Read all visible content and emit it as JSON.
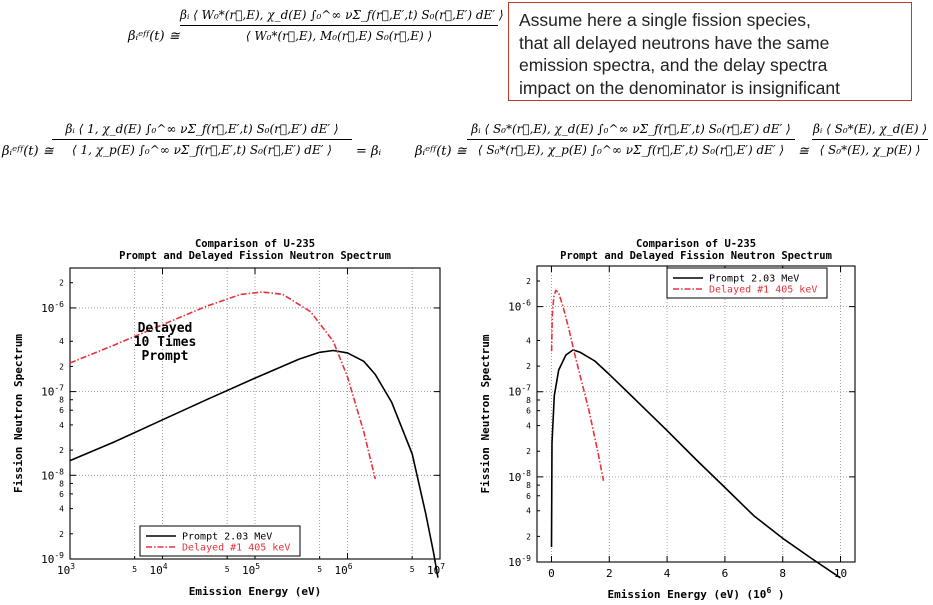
{
  "equations": {
    "eq1": {
      "lhs": "βᵢᵉᶠᶠ(t) ≅",
      "numerator": "βᵢ ⟨ W₀*(r⃗,E), χ_d(E) ∫₀^∞ νΣ_f(r⃗,E′,t) S₀(r⃗,E′) dE′ ⟩",
      "denominator": "⟨ W₀*(r⃗,E), M₀(r⃗,E) S₀(r⃗,E) ⟩"
    },
    "eq2": {
      "lhs": "βᵢᵉᶠᶠ(t) ≅",
      "numerator": "βᵢ ⟨ 1, χ_d(E) ∫₀^∞ νΣ_f(r⃗,E′,t) S₀(r⃗,E′) dE′ ⟩",
      "denominator": "⟨ 1, χ_p(E) ∫₀^∞ νΣ_f(r⃗,E′,t) S₀(r⃗,E′) dE′ ⟩",
      "result": "= βᵢ"
    },
    "eq3": {
      "lhs": "βᵢᵉᶠᶠ(t) ≅",
      "numerator": "βᵢ ⟨ S₀*(r⃗,E), χ_d(E) ∫₀^∞ νΣ_f(r⃗,E′,t) S₀(r⃗,E′) dE′ ⟩",
      "denominator": "⟨ S₀*(r⃗,E), χ_p(E) ∫₀^∞ νΣ_f(r⃗,E′,t) S₀(r⃗,E′) dE′ ⟩",
      "approx": "≅",
      "numerator2": "βᵢ ⟨ S₀*(E), χ_d(E) ⟩",
      "denominator2": "⟨ S₀*(E), χ_p(E) ⟩"
    }
  },
  "note": {
    "lines": [
      "Assume here a single fission species,",
      "that all delayed neutrons have the same",
      "emission spectra, and the delay spectra",
      "impact on the denominator is insignificant"
    ]
  },
  "colors": {
    "prompt": "#000000",
    "delayed": "#e8323c",
    "note_border": "#c0392b"
  },
  "chart_data": [
    {
      "type": "line",
      "title": "Comparison of U-235",
      "subtitle": "Prompt and Delayed Fission Neutron Spectrum",
      "xlabel": "Emission Energy (eV)",
      "ylabel": "Fission Neutron Spectrum",
      "xscale": "log",
      "yscale": "log",
      "xlim": [
        1000,
        10000000
      ],
      "ylim": [
        1e-09,
        3e-06
      ],
      "x_major_ticks": [
        {
          "v": 1000,
          "b": "10",
          "e": "3"
        },
        {
          "v": 10000,
          "b": "10",
          "e": "4"
        },
        {
          "v": 100000,
          "b": "10",
          "e": "5"
        },
        {
          "v": 1000000,
          "b": "10",
          "e": "6"
        },
        {
          "v": 10000000,
          "b": "10",
          "e": "7"
        }
      ],
      "x_minor_ticks": [
        {
          "v": 5000,
          "t": "5"
        },
        {
          "v": 50000,
          "t": "5"
        },
        {
          "v": 500000,
          "t": "5"
        },
        {
          "v": 5000000,
          "t": "5"
        }
      ],
      "y_major_ticks": [
        {
          "v": 1e-06,
          "b": "10",
          "e": "-6"
        },
        {
          "v": 1e-07,
          "b": "10",
          "e": "-7"
        },
        {
          "v": 1e-08,
          "b": "10",
          "e": "-8"
        },
        {
          "v": 1e-09,
          "b": "10",
          "e": "-9"
        }
      ],
      "y_minor_ticks": [
        {
          "v": 2e-06,
          "t": "2"
        },
        {
          "v": 4e-07,
          "t": "4"
        },
        {
          "v": 2e-07,
          "t": "2"
        },
        {
          "v": 8e-08,
          "t": "8"
        },
        {
          "v": 6e-08,
          "t": "6"
        },
        {
          "v": 4e-08,
          "t": "4"
        },
        {
          "v": 2e-08,
          "t": "2"
        },
        {
          "v": 8e-09,
          "t": "8"
        },
        {
          "v": 6e-09,
          "t": "6"
        },
        {
          "v": 4e-09,
          "t": "4"
        },
        {
          "v": 2e-09,
          "t": "2"
        }
      ],
      "grid": true,
      "annotation": [
        "Delayed",
        "10 Times",
        "Prompt"
      ],
      "legend_position": "bottom-center",
      "series": [
        {
          "name": "Prompt 2.03 MeV",
          "color": "#000000",
          "dash": "solid",
          "x": [
            1000,
            3000,
            10000,
            30000,
            100000,
            300000,
            500000,
            700000,
            1000000,
            1500000,
            2000000,
            3000000,
            5000000,
            7000000,
            8500000,
            9500000
          ],
          "y": [
            1.5e-08,
            2.5e-08,
            4.6e-08,
            8e-08,
            1.45e-07,
            2.45e-07,
            2.95e-07,
            3.1e-07,
            2.9e-07,
            2.3e-07,
            1.6e-07,
            7.5e-08,
            1.8e-08,
            3.5e-09,
            1.2e-09,
            6e-10
          ]
        },
        {
          "name": "Delayed #1 405 keV",
          "color": "#e8323c",
          "dash": "dashed",
          "x": [
            1000,
            3000,
            10000,
            30000,
            70000,
            120000,
            200000,
            400000,
            700000,
            1000000,
            1500000,
            2000000
          ],
          "y": [
            2.2e-07,
            3.6e-07,
            6.3e-07,
            1.05e-06,
            1.45e-06,
            1.55e-06,
            1.45e-06,
            9e-07,
            4e-07,
            1.5e-07,
            3.3e-08,
            9e-09
          ]
        }
      ]
    },
    {
      "type": "line",
      "title": "Comparison of U-235",
      "subtitle": "Prompt and Delayed Fission Neutron Spectrum",
      "xlabel": "Emission Energy (eV) (10",
      "xlabel_exp": "6",
      "xlabel_end": ")",
      "ylabel": "Fission Neutron Spectrum",
      "xscale": "linear",
      "yscale": "log",
      "xlim": [
        -0.5,
        10.5
      ],
      "ylim": [
        1e-09,
        3e-06
      ],
      "x_major_ticks": [
        {
          "v": 0,
          "t": "0"
        },
        {
          "v": 2,
          "t": "2"
        },
        {
          "v": 4,
          "t": "4"
        },
        {
          "v": 6,
          "t": "6"
        },
        {
          "v": 8,
          "t": "8"
        },
        {
          "v": 10,
          "t": "10"
        }
      ],
      "y_major_ticks": [
        {
          "v": 1e-06,
          "b": "10",
          "e": "-6"
        },
        {
          "v": 1e-07,
          "b": "10",
          "e": "-7"
        },
        {
          "v": 1e-08,
          "b": "10",
          "e": "-8"
        },
        {
          "v": 1e-09,
          "b": "10",
          "e": "-9"
        }
      ],
      "y_minor_ticks": [
        {
          "v": 2e-06,
          "t": "2"
        },
        {
          "v": 4e-07,
          "t": "4"
        },
        {
          "v": 2e-07,
          "t": "2"
        },
        {
          "v": 8e-08,
          "t": "8"
        },
        {
          "v": 6e-08,
          "t": "6"
        },
        {
          "v": 4e-08,
          "t": "4"
        },
        {
          "v": 2e-08,
          "t": "2"
        },
        {
          "v": 8e-09,
          "t": "8"
        },
        {
          "v": 6e-09,
          "t": "6"
        },
        {
          "v": 4e-09,
          "t": "4"
        },
        {
          "v": 2e-09,
          "t": "2"
        }
      ],
      "grid": true,
      "legend_position": "top-right",
      "series": [
        {
          "name": "Prompt 2.03 MeV",
          "color": "#000000",
          "dash": "solid",
          "x": [
            0.003,
            0.02,
            0.1,
            0.25,
            0.5,
            0.75,
            1.0,
            1.5,
            2,
            3,
            4,
            5,
            6,
            7,
            8,
            9,
            10
          ],
          "y": [
            1.5e-09,
            2.5e-08,
            9e-08,
            1.8e-07,
            2.7e-07,
            3.1e-07,
            2.9e-07,
            2.3e-07,
            1.6e-07,
            7.5e-08,
            3.5e-08,
            1.6e-08,
            7.5e-09,
            3.5e-09,
            1.9e-09,
            1.1e-09,
            6.5e-10
          ]
        },
        {
          "name": "Delayed #1 405 keV",
          "color": "#e8323c",
          "dash": "dashed",
          "x": [
            0.005,
            0.03,
            0.08,
            0.15,
            0.25,
            0.4,
            0.6,
            0.8,
            1.0,
            1.3,
            1.6,
            1.8
          ],
          "y": [
            3e-07,
            8e-07,
            1.3e-06,
            1.55e-06,
            1.45e-06,
            1e-06,
            5.5e-07,
            2.8e-07,
            1.5e-07,
            6e-08,
            2e-08,
            9e-09
          ]
        }
      ]
    }
  ]
}
